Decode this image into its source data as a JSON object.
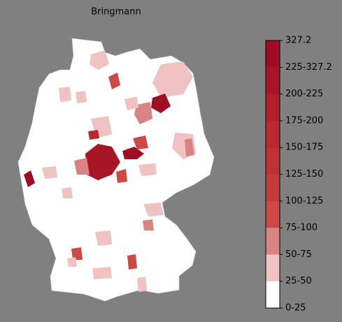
{
  "map": {
    "title": "Bringmann",
    "colorbar": {
      "labels": [
        "327.2",
        "225-327.2",
        "200-225",
        "175-200",
        "150-175",
        "125-150",
        "100-125",
        "75-100",
        "50-75",
        "25-50",
        "0-25"
      ],
      "colors": [
        "#a00c22",
        "#a81526",
        "#b01e2a",
        "#b7282f",
        "#be3134",
        "#c43b3a",
        "#cb4a46",
        "#d98482",
        "#efc3c2",
        "#ffffff"
      ]
    }
  }
}
